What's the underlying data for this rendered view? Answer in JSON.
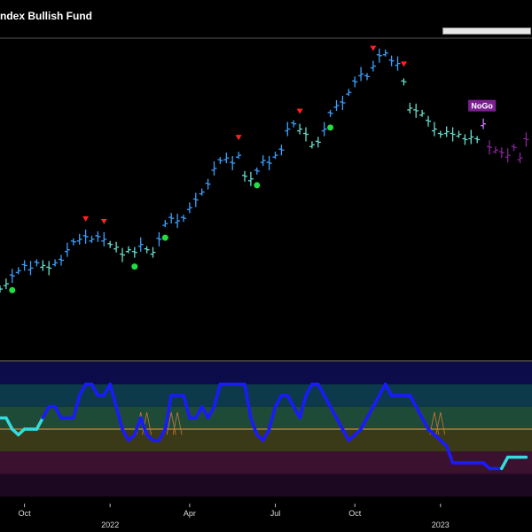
{
  "title": "ndex Bullish Fund",
  "colors": {
    "background": "#000000",
    "go_strong": "#3aa0ff",
    "go_weak": "#66ddcc",
    "nogo_weak": "#cc77ff",
    "nogo_strong": "#882299",
    "oscillator_line": "#1a1aff",
    "oscillator_line_light": "#33dddd",
    "zero_line": "#ff9933",
    "down_triangle": "#ff2222",
    "dot": "#22dd44"
  },
  "chart_data": [
    {
      "type": "ohlc",
      "title": "ndex Bullish Fund",
      "price_range": [
        0,
        100
      ],
      "bars": [
        {
          "x": 0,
          "close": 25,
          "color": "go_weak"
        },
        {
          "x": 1,
          "close": 27,
          "color": "go_weak"
        },
        {
          "x": 2,
          "close": 30,
          "color": "go_strong"
        },
        {
          "x": 3,
          "close": 32,
          "color": "go_strong"
        },
        {
          "x": 4,
          "close": 34,
          "color": "go_strong"
        },
        {
          "x": 5,
          "close": 33,
          "color": "go_strong"
        },
        {
          "x": 6,
          "close": 35,
          "color": "go_strong"
        },
        {
          "x": 7,
          "close": 34,
          "color": "go_weak"
        },
        {
          "x": 8,
          "close": 33,
          "color": "go_weak"
        },
        {
          "x": 9,
          "close": 35,
          "color": "go_strong"
        },
        {
          "x": 10,
          "close": 36,
          "color": "go_strong"
        },
        {
          "x": 11,
          "close": 40,
          "color": "go_strong"
        },
        {
          "x": 12,
          "close": 43,
          "color": "go_strong"
        },
        {
          "x": 13,
          "close": 44,
          "color": "go_strong"
        },
        {
          "x": 14,
          "close": 45,
          "color": "go_strong"
        },
        {
          "x": 15,
          "close": 44,
          "color": "go_strong"
        },
        {
          "x": 16,
          "close": 45,
          "color": "go_strong"
        },
        {
          "x": 17,
          "close": 44,
          "color": "go_strong"
        },
        {
          "x": 18,
          "close": 42,
          "color": "go_weak"
        },
        {
          "x": 19,
          "close": 41,
          "color": "go_weak"
        },
        {
          "x": 20,
          "close": 38,
          "color": "go_weak"
        },
        {
          "x": 21,
          "close": 40,
          "color": "go_weak"
        },
        {
          "x": 22,
          "close": 39,
          "color": "go_weak"
        },
        {
          "x": 23,
          "close": 42,
          "color": "go_strong"
        },
        {
          "x": 24,
          "close": 40,
          "color": "go_weak"
        },
        {
          "x": 25,
          "close": 39,
          "color": "go_weak"
        },
        {
          "x": 26,
          "close": 44,
          "color": "go_strong"
        },
        {
          "x": 27,
          "close": 50,
          "color": "go_strong"
        },
        {
          "x": 28,
          "close": 52,
          "color": "go_strong"
        },
        {
          "x": 29,
          "close": 51,
          "color": "go_strong"
        },
        {
          "x": 30,
          "close": 52,
          "color": "go_strong"
        },
        {
          "x": 31,
          "close": 56,
          "color": "go_strong"
        },
        {
          "x": 32,
          "close": 59,
          "color": "go_strong"
        },
        {
          "x": 33,
          "close": 62,
          "color": "go_strong"
        },
        {
          "x": 34,
          "close": 65,
          "color": "go_strong"
        },
        {
          "x": 35,
          "close": 71,
          "color": "go_strong"
        },
        {
          "x": 36,
          "close": 74,
          "color": "go_strong"
        },
        {
          "x": 37,
          "close": 75,
          "color": "go_strong"
        },
        {
          "x": 38,
          "close": 73,
          "color": "go_strong"
        },
        {
          "x": 39,
          "close": 76,
          "color": "go_strong"
        },
        {
          "x": 40,
          "close": 68,
          "color": "go_weak"
        },
        {
          "x": 41,
          "close": 67,
          "color": "go_weak"
        },
        {
          "x": 42,
          "close": 70,
          "color": "go_strong"
        },
        {
          "x": 43,
          "close": 74,
          "color": "go_strong"
        },
        {
          "x": 44,
          "close": 73,
          "color": "go_strong"
        },
        {
          "x": 45,
          "close": 76,
          "color": "go_strong"
        },
        {
          "x": 46,
          "close": 78,
          "color": "go_strong"
        },
        {
          "x": 47,
          "close": 86,
          "color": "go_strong"
        },
        {
          "x": 48,
          "close": 88,
          "color": "go_strong"
        },
        {
          "x": 49,
          "close": 86,
          "color": "go_weak"
        },
        {
          "x": 50,
          "close": 84,
          "color": "go_weak"
        },
        {
          "x": 51,
          "close": 80,
          "color": "go_weak"
        },
        {
          "x": 52,
          "close": 81,
          "color": "go_weak"
        },
        {
          "x": 53,
          "close": 86,
          "color": "go_strong"
        },
        {
          "x": 54,
          "close": 92,
          "color": "go_strong"
        },
        {
          "x": 55,
          "close": 95,
          "color": "go_strong"
        },
        {
          "x": 56,
          "close": 96,
          "color": "go_strong"
        },
        {
          "x": 57,
          "close": 100,
          "color": "go_strong"
        },
        {
          "x": 58,
          "close": 104,
          "color": "go_strong"
        },
        {
          "x": 59,
          "close": 107,
          "color": "go_strong"
        },
        {
          "x": 60,
          "close": 106,
          "color": "go_strong"
        },
        {
          "x": 61,
          "close": 110,
          "color": "go_strong"
        },
        {
          "x": 62,
          "close": 114,
          "color": "go_strong"
        },
        {
          "x": 63,
          "close": 115,
          "color": "go_strong"
        },
        {
          "x": 64,
          "close": 112,
          "color": "go_strong"
        },
        {
          "x": 65,
          "close": 111,
          "color": "go_strong"
        },
        {
          "x": 66,
          "close": 104,
          "color": "go_weak"
        },
        {
          "x": 67,
          "close": 94,
          "color": "go_weak"
        },
        {
          "x": 68,
          "close": 93,
          "color": "go_weak"
        },
        {
          "x": 69,
          "close": 92,
          "color": "go_weak"
        },
        {
          "x": 70,
          "close": 89,
          "color": "go_weak"
        },
        {
          "x": 71,
          "close": 86,
          "color": "go_weak"
        },
        {
          "x": 72,
          "close": 84,
          "color": "go_weak"
        },
        {
          "x": 73,
          "close": 85,
          "color": "go_weak"
        },
        {
          "x": 74,
          "close": 84,
          "color": "go_weak"
        },
        {
          "x": 75,
          "close": 84,
          "color": "go_weak"
        },
        {
          "x": 76,
          "close": 82,
          "color": "go_weak"
        },
        {
          "x": 77,
          "close": 83,
          "color": "go_weak"
        },
        {
          "x": 78,
          "close": 82,
          "color": "go_weak"
        },
        {
          "x": 79,
          "close": 88,
          "color": "nogo_weak"
        },
        {
          "x": 80,
          "close": 79,
          "color": "nogo_strong"
        },
        {
          "x": 81,
          "close": 78,
          "color": "nogo_strong"
        },
        {
          "x": 82,
          "close": 77,
          "color": "nogo_strong"
        },
        {
          "x": 83,
          "close": 76,
          "color": "nogo_strong"
        },
        {
          "x": 84,
          "close": 79,
          "color": "nogo_strong"
        },
        {
          "x": 85,
          "close": 75,
          "color": "nogo_strong"
        },
        {
          "x": 86,
          "close": 82,
          "color": "nogo_strong"
        }
      ],
      "down_triangles_at": [
        14,
        17,
        39,
        49,
        61,
        66
      ],
      "dots_at": [
        2,
        22,
        27,
        42,
        54
      ],
      "annotations": [
        {
          "text": "NoGo",
          "at": 79
        }
      ]
    },
    {
      "type": "line",
      "name": "oscillator",
      "ylim": [
        -6,
        6
      ],
      "zero": 0,
      "values": [
        1,
        1,
        0,
        -0.5,
        0,
        0,
        0,
        1,
        2,
        2,
        1,
        1,
        1,
        3,
        4,
        4,
        3,
        3,
        4,
        2,
        0,
        -1,
        -0.5,
        1,
        -0.5,
        -1,
        -1,
        0,
        3,
        3,
        3,
        1,
        1,
        2,
        1,
        2,
        4,
        4,
        4,
        4,
        4,
        1,
        -0.5,
        -1,
        0,
        2,
        3,
        3,
        2,
        1,
        3,
        4,
        4,
        3,
        2,
        1,
        0,
        -1,
        -0.5,
        0,
        1,
        2,
        3,
        4,
        3,
        3,
        3,
        3,
        2,
        1,
        0,
        -0.5,
        -1,
        -1.5,
        -3,
        -3,
        -3,
        -3,
        -3,
        -3,
        -3.5,
        -3.5,
        -3.5,
        -2.5,
        -2.5,
        -2.5,
        -2.5
      ],
      "segments_light": [
        [
          0,
          7
        ],
        [
          82,
          86
        ]
      ]
    }
  ],
  "x_axis": {
    "ticks": [
      {
        "label": "Oct",
        "at": 4
      },
      {
        "label": "2022",
        "at": 18,
        "row": 2
      },
      {
        "label": "Apr",
        "at": 31
      },
      {
        "label": "Jul",
        "at": 45
      },
      {
        "label": "Oct",
        "at": 58
      },
      {
        "label": "2023",
        "at": 72,
        "row": 2
      }
    ]
  }
}
